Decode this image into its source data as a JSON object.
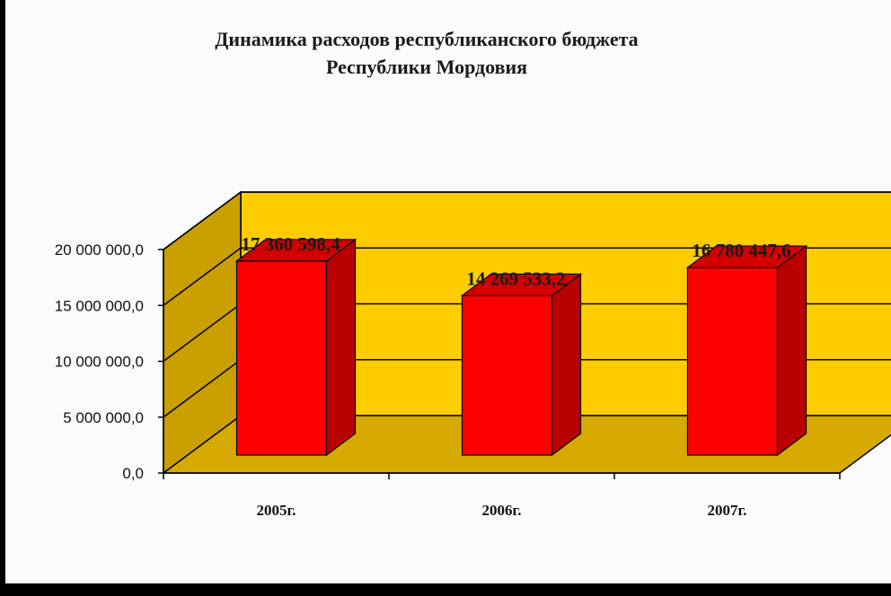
{
  "chart_data": {
    "type": "bar",
    "title": "Динамика расходов республиканского бюджета",
    "subtitle": "Республики Мордовия",
    "categories": [
      "2005г.",
      "2006г.",
      "2007г."
    ],
    "values": [
      17360598.4,
      14269533.2,
      16780447.6
    ],
    "value_labels": [
      "17 360 598,4",
      "14 269 533,2",
      "16 780 447,6"
    ],
    "y_ticks": [
      "0,0",
      "5 000 000,0",
      "10 000 000,0",
      "15 000 000,0",
      "20 000 000,0"
    ],
    "ylim": [
      0,
      20000000
    ],
    "grid": true,
    "style": "3d-column",
    "colors": {
      "bar_front": "#ff0000",
      "bar_side": "#b80000",
      "bar_top": "#d40000",
      "wall": "#ffcc00",
      "side_wall": "#c9a000",
      "floor": "#d6aa00",
      "gridline": "#000000"
    }
  }
}
